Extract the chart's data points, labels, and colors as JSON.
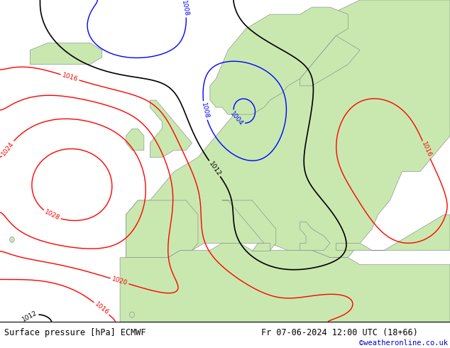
{
  "title_left": "Surface pressure [hPa] ECMWF",
  "title_right": "Fr 07-06-2024 12:00 UTC (18+66)",
  "credit": "©weatheronline.co.uk",
  "ocean_color": "#d8d8d8",
  "land_color": "#c8e8b0",
  "africa_color": "#c8e8b0",
  "fig_width": 6.34,
  "fig_height": 4.9,
  "dpi": 100,
  "font_size_title": 8.5,
  "font_size_credit": 7.5,
  "isobar_interval": 4,
  "pressure_min": 992,
  "pressure_max": 1032
}
